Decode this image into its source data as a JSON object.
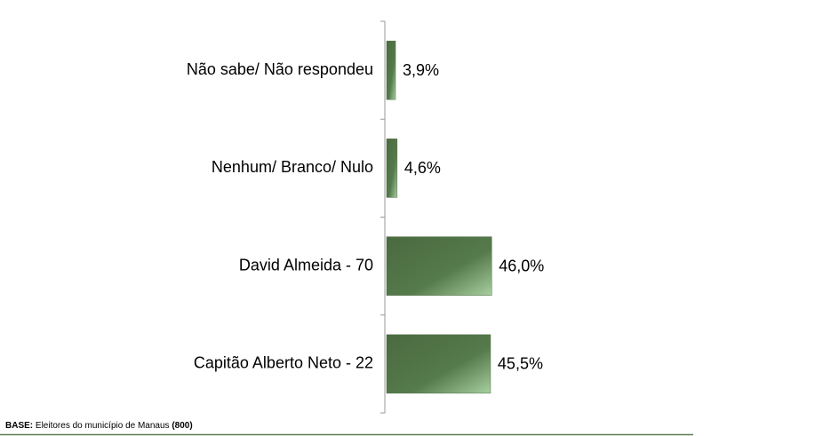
{
  "chart_data": {
    "type": "bar",
    "orientation": "horizontal",
    "categories": [
      "Não sabe/ Não respondeu",
      "Nenhum/ Branco/ Nulo",
      "David Almeida - 70",
      "Capitão Alberto Neto - 22"
    ],
    "values": [
      3.9,
      4.6,
      46.0,
      45.5
    ],
    "value_labels": [
      "3,9%",
      "4,6%",
      "46,0%",
      "45,5%"
    ],
    "color": "#4e6e44"
  },
  "footer": {
    "label": "BASE:",
    "text": "Eleitores do município de Manaus",
    "count": "(800)"
  }
}
